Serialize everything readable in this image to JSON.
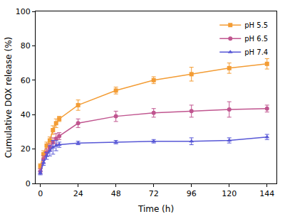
{
  "chart_data": {
    "type": "line",
    "x_label": "Time (h)",
    "y_label": "Cumulative DOX release (%)",
    "x": [
      0,
      2,
      4,
      6,
      8,
      10,
      12,
      24,
      48,
      72,
      96,
      120,
      144
    ],
    "series": [
      {
        "name": "pH 5.5",
        "color": "#f39c34",
        "marker": "square",
        "line_style": "solid",
        "values": [
          10,
          17,
          22,
          25,
          31,
          35,
          37.5,
          45.5,
          54,
          60,
          63.5,
          67,
          69.5
        ],
        "errors": [
          1.5,
          2,
          2,
          2,
          2.5,
          2.5,
          1.5,
          3,
          2,
          2,
          4,
          3,
          3
        ]
      },
      {
        "name": "pH 6.5",
        "color": "#c0558f",
        "marker": "circle",
        "line_style": "solid",
        "values": [
          7,
          14,
          18,
          21,
          24,
          26,
          27.5,
          35,
          39,
          41,
          42,
          43,
          43.5
        ],
        "errors": [
          1.5,
          2,
          2,
          2,
          2.5,
          3,
          2,
          2.5,
          3,
          2.5,
          3.5,
          4.5,
          2
        ]
      },
      {
        "name": "pH 7.4",
        "color": "#5757d6",
        "marker": "triangle",
        "line_style": "solid",
        "values": [
          6,
          12,
          16,
          19,
          21,
          22,
          22.5,
          23.5,
          24,
          24.5,
          24.5,
          25,
          27
        ],
        "errors": [
          1,
          1.5,
          2,
          3,
          4,
          3,
          1.5,
          1,
          1,
          1,
          2,
          1.5,
          1.5
        ]
      }
    ],
    "xlim": [
      -3,
      150
    ],
    "xticks": [
      0,
      24,
      48,
      72,
      96,
      120,
      144
    ],
    "ylim": [
      0,
      100
    ],
    "yticks": [
      0,
      20,
      40,
      60,
      80,
      100
    ],
    "grid": false,
    "legend": "top right"
  }
}
